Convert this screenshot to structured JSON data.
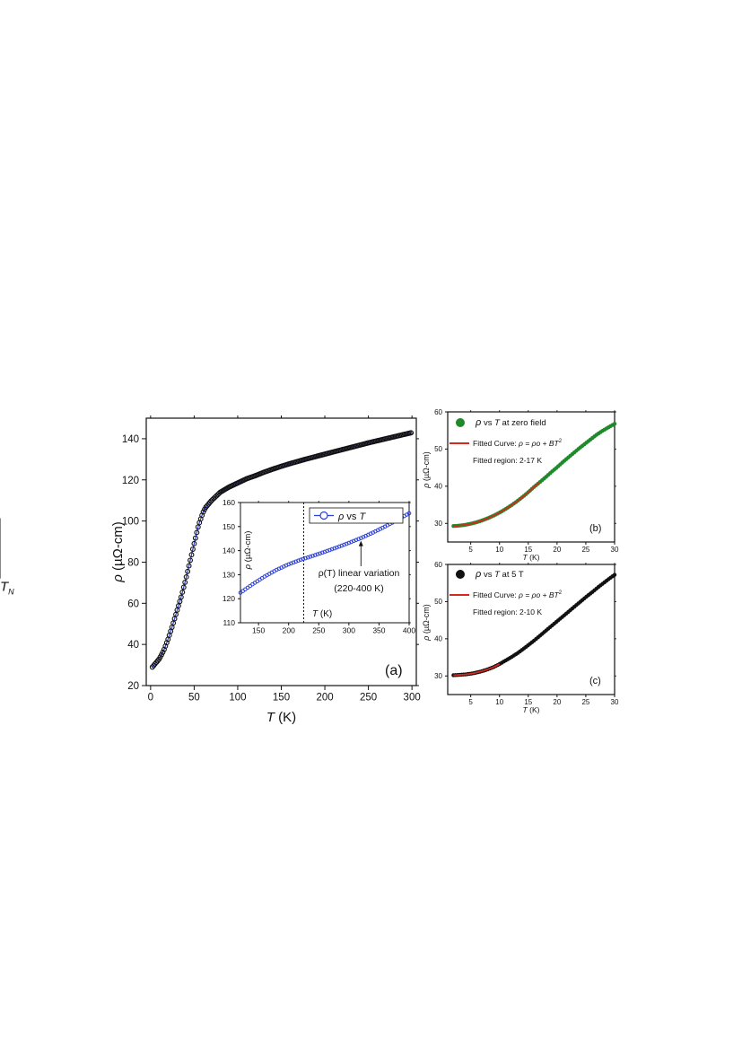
{
  "chart_data": [
    {
      "id": "a",
      "type": "scatter",
      "panel_label": "(a)",
      "xlabel_italic": "T",
      "xlabel_rest": " (K)",
      "ylabel_symbol": "ρ",
      "ylabel_rest": " (µΩ-cm)",
      "xlim": [
        -5,
        305
      ],
      "ylim": [
        20,
        150
      ],
      "xticks": [
        0,
        50,
        100,
        150,
        200,
        250,
        300
      ],
      "yticks": [
        20,
        40,
        60,
        80,
        100,
        120,
        140
      ],
      "marker_color": "#111111",
      "line_color": "#2b3fd6",
      "annotation": {
        "text_italic": "T",
        "subscript": "N",
        "arrow_at_x": 65
      },
      "series": [
        {
          "x": [
            2,
            5,
            8,
            10,
            15,
            20,
            25,
            30,
            35,
            40,
            45,
            50,
            55,
            60,
            63,
            66,
            70,
            75,
            80,
            90,
            100,
            110,
            120,
            130,
            140,
            150,
            160,
            170,
            180,
            190,
            200,
            210,
            220,
            230,
            240,
            250,
            260,
            270,
            280,
            290,
            300
          ],
          "y": [
            29,
            30.5,
            32,
            33,
            37,
            42.5,
            49,
            56,
            63,
            71,
            80,
            89,
            98,
            104,
            106.5,
            108,
            110,
            112,
            114,
            116.5,
            118.5,
            120.5,
            122,
            123.7,
            125.2,
            126.6,
            127.9,
            129.1,
            130.3,
            131.4,
            132.5,
            133.6,
            134.7,
            135.8,
            136.9,
            138,
            139,
            140,
            141,
            142,
            143
          ]
        }
      ]
    },
    {
      "id": "a-inset",
      "type": "scatter",
      "xlabel_italic": "T",
      "xlabel_rest": " (K)",
      "ylabel_symbol": "ρ",
      "ylabel_rest": " (µΩ-cm)",
      "xlim": [
        120,
        400
      ],
      "ylim": [
        110,
        160
      ],
      "xticks": [
        150,
        200,
        250,
        300,
        350,
        400
      ],
      "yticks": [
        110,
        120,
        130,
        140,
        150,
        160
      ],
      "vline_x": 225,
      "legend_symbol": "ρ",
      "legend_rest": " vs ",
      "legend_italic": "T",
      "marker_color": "#2b3fd6",
      "annotation_line1": "ρ(T) linear variation",
      "annotation_line2": "(220-400 K)",
      "annotation_arrow_x": 320,
      "series": [
        {
          "x": [
            120,
            140,
            160,
            180,
            200,
            220,
            240,
            260,
            280,
            300,
            320,
            340,
            360,
            380,
            400
          ],
          "y": [
            122.5,
            126,
            129.2,
            132,
            134.3,
            136.2,
            137.8,
            139.5,
            141.3,
            143.2,
            145.2,
            147.5,
            150,
            152.7,
            155.5
          ]
        }
      ]
    },
    {
      "id": "b",
      "type": "scatter",
      "panel_label": "(b)",
      "xlabel_italic": "T",
      "xlabel_rest": " (K)",
      "ylabel_symbol": "ρ",
      "ylabel_rest": " (µΩ-cm)",
      "xlim": [
        1,
        30
      ],
      "ylim": [
        25,
        60
      ],
      "xticks": [
        5,
        10,
        15,
        20,
        25,
        30
      ],
      "yticks": [
        30,
        40,
        50,
        60
      ],
      "marker_color": "#1f8a2a",
      "fit_color": "#d42a1e",
      "legend_symbol": "ρ",
      "legend_rest": " vs ",
      "legend_italic": "T",
      "legend_suffix": " at zero field",
      "fit_label": "Fitted Curve: ",
      "fit_formula": "ρ = ρo + BT",
      "fit_region": "Fitted region:  2-17 K",
      "series": [
        {
          "x": [
            2,
            3,
            4,
            5,
            6,
            7,
            8,
            9,
            10,
            11,
            12,
            13,
            14,
            15,
            16,
            17,
            18,
            19,
            20,
            21,
            22,
            23,
            24,
            25,
            26,
            27,
            28,
            29,
            30
          ],
          "y": [
            29.3,
            29.4,
            29.6,
            29.9,
            30.3,
            30.8,
            31.4,
            32.1,
            32.9,
            33.8,
            34.8,
            35.9,
            37.1,
            38.4,
            39.8,
            41.1,
            42.4,
            43.8,
            45.1,
            46.5,
            47.8,
            49.1,
            50.4,
            51.6,
            52.8,
            54,
            55,
            55.9,
            56.8
          ]
        }
      ],
      "fit": {
        "x": [
          2,
          3,
          4,
          5,
          6,
          7,
          8,
          9,
          10,
          11,
          12,
          13,
          14,
          15,
          16,
          17
        ],
        "y": [
          29.3,
          29.4,
          29.6,
          29.9,
          30.3,
          30.8,
          31.4,
          32.1,
          32.9,
          33.8,
          34.8,
          35.9,
          37.1,
          38.4,
          39.8,
          41.1
        ]
      }
    },
    {
      "id": "c",
      "type": "scatter",
      "panel_label": "(c)",
      "xlabel_italic": "T",
      "xlabel_rest": " (K)",
      "ylabel_symbol": "ρ",
      "ylabel_rest": " (µΩ-cm)",
      "xlim": [
        1,
        30
      ],
      "ylim": [
        25,
        60
      ],
      "xticks": [
        5,
        10,
        15,
        20,
        25,
        30
      ],
      "yticks": [
        30,
        40,
        50,
        60
      ],
      "marker_color": "#111111",
      "fit_color": "#d42a1e",
      "legend_symbol": "ρ",
      "legend_rest": " vs ",
      "legend_italic": "T",
      "legend_suffix": " at 5 T",
      "fit_label": "Fitted Curve: ",
      "fit_formula": "ρ = ρo + BT",
      "fit_region": "Fitted region:  2-10 K",
      "series": [
        {
          "x": [
            2,
            3,
            4,
            5,
            6,
            7,
            8,
            9,
            10,
            11,
            12,
            13,
            14,
            15,
            16,
            17,
            18,
            19,
            20,
            21,
            22,
            23,
            24,
            25,
            26,
            27,
            28,
            29,
            30
          ],
          "y": [
            30.2,
            30.3,
            30.4,
            30.6,
            30.9,
            31.3,
            31.8,
            32.4,
            33.2,
            34.1,
            35,
            36,
            37.1,
            38.3,
            39.5,
            40.8,
            42.1,
            43.4,
            44.7,
            46,
            47.3,
            48.6,
            49.9,
            51.2,
            52.4,
            53.7,
            54.9,
            56.1,
            57.2
          ]
        }
      ],
      "fit": {
        "x": [
          2,
          3,
          4,
          5,
          6,
          7,
          8,
          9,
          10
        ],
        "y": [
          30.2,
          30.3,
          30.4,
          30.6,
          30.9,
          31.3,
          31.8,
          32.4,
          33.2
        ]
      }
    }
  ]
}
